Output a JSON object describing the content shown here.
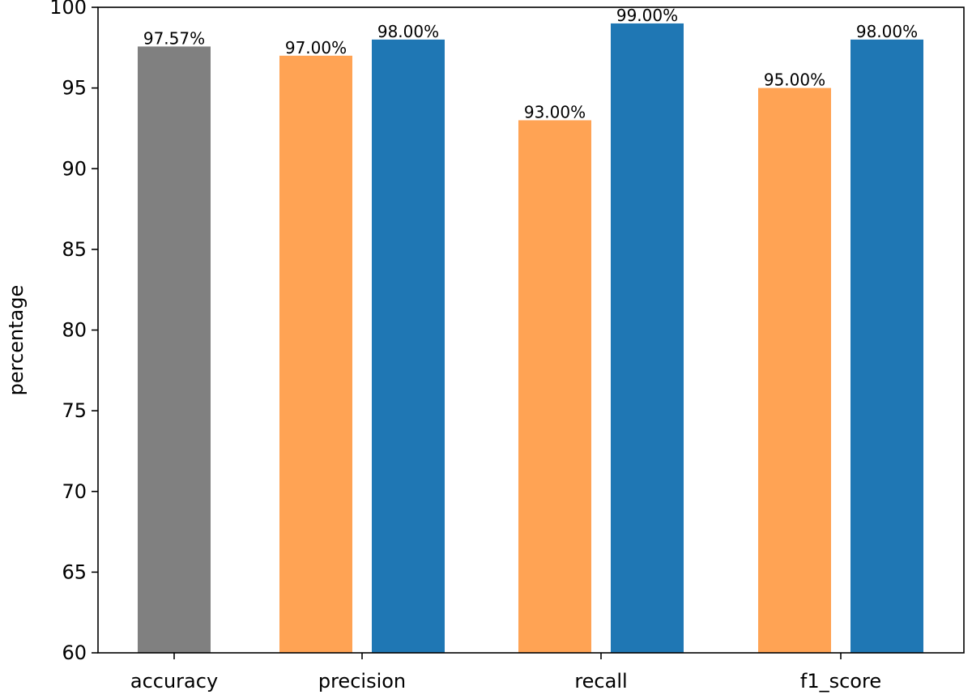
{
  "chart_data": {
    "type": "bar",
    "categories": [
      "accuracy",
      "precision",
      "recall",
      "f1_score"
    ],
    "ylabel": "percentage",
    "xlabel": "",
    "ylim": [
      60,
      100
    ],
    "yticks": [
      60,
      65,
      70,
      75,
      80,
      85,
      90,
      95,
      100
    ],
    "grid": false,
    "bars": [
      {
        "category": "accuracy",
        "value": 97.57,
        "label": "97.57%",
        "color": "#808080"
      },
      {
        "category": "precision",
        "value": 97.0,
        "label": "97.00%",
        "color": "#ffa354"
      },
      {
        "category": "precision",
        "value": 98.0,
        "label": "98.00%",
        "color": "#1f77b4"
      },
      {
        "category": "recall",
        "value": 93.0,
        "label": "93.00%",
        "color": "#ffa354"
      },
      {
        "category": "recall",
        "value": 99.0,
        "label": "99.00%",
        "color": "#1f77b4"
      },
      {
        "category": "f1_score",
        "value": 95.0,
        "label": "95.00%",
        "color": "#ffa354"
      },
      {
        "category": "f1_score",
        "value": 98.0,
        "label": "98.00%",
        "color": "#1f77b4"
      }
    ]
  }
}
